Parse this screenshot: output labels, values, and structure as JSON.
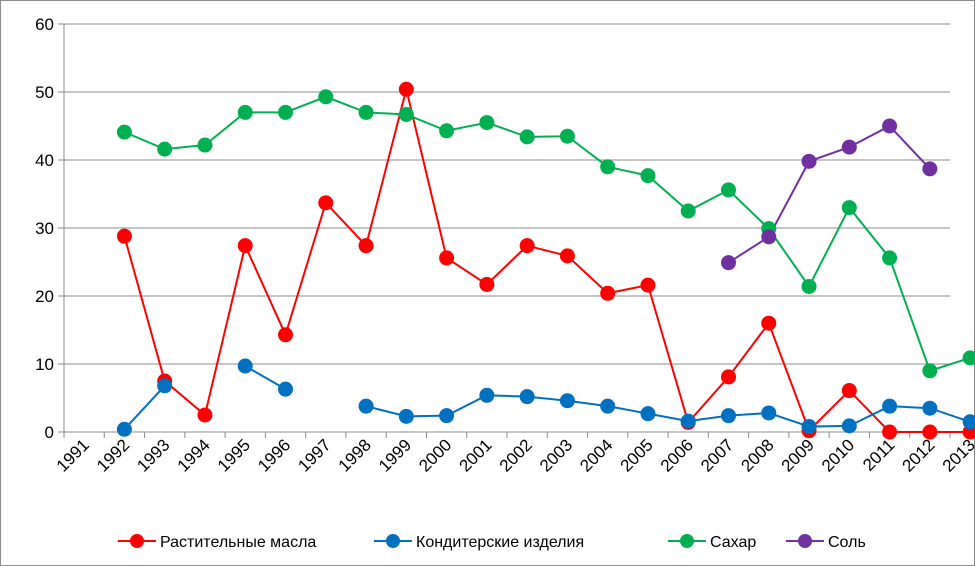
{
  "chart_data": {
    "type": "line",
    "title": "",
    "xlabel": "",
    "ylabel": "",
    "ylim": [
      0,
      60
    ],
    "yticks": [
      0,
      10,
      20,
      30,
      40,
      50,
      60
    ],
    "grid": "horizontal",
    "legend_position": "bottom",
    "categories": [
      "1991",
      "1992",
      "1993",
      "1994",
      "1995",
      "1996",
      "1997",
      "1998",
      "1999",
      "2000",
      "2001",
      "2002",
      "2003",
      "2004",
      "2005",
      "2006",
      "2007",
      "2008",
      "2009",
      "2010",
      "2011",
      "2012",
      "2013"
    ],
    "series": [
      {
        "name": "Растительные масла",
        "color": "#ff0000",
        "values": [
          null,
          28.8,
          7.5,
          2.5,
          27.4,
          14.3,
          33.7,
          27.4,
          50.4,
          25.6,
          21.7,
          27.4,
          25.9,
          20.4,
          21.6,
          1.4,
          8.1,
          16.0,
          0.2,
          6.1,
          0.0,
          0.0,
          0.0
        ]
      },
      {
        "name": "Кондитерские изделия",
        "color": "#0070c0",
        "values": [
          null,
          0.4,
          6.8,
          null,
          9.7,
          6.3,
          null,
          3.8,
          2.3,
          2.4,
          5.4,
          5.2,
          4.6,
          3.8,
          2.7,
          1.6,
          2.4,
          2.8,
          0.8,
          0.9,
          3.8,
          3.5,
          1.5
        ]
      },
      {
        "name": "Сахар",
        "color": "#00b050",
        "values": [
          null,
          44.1,
          41.6,
          42.2,
          47.0,
          47.0,
          49.3,
          47.0,
          46.7,
          44.3,
          45.5,
          43.4,
          43.5,
          39.0,
          37.7,
          32.5,
          35.6,
          29.9,
          21.4,
          33.0,
          25.6,
          9.0,
          10.9
        ]
      },
      {
        "name": "Соль",
        "color": "#7030a0",
        "values": [
          null,
          null,
          null,
          null,
          null,
          null,
          null,
          null,
          null,
          null,
          null,
          null,
          null,
          null,
          null,
          null,
          24.9,
          28.7,
          39.8,
          41.9,
          45.0,
          38.7,
          null
        ]
      }
    ]
  }
}
